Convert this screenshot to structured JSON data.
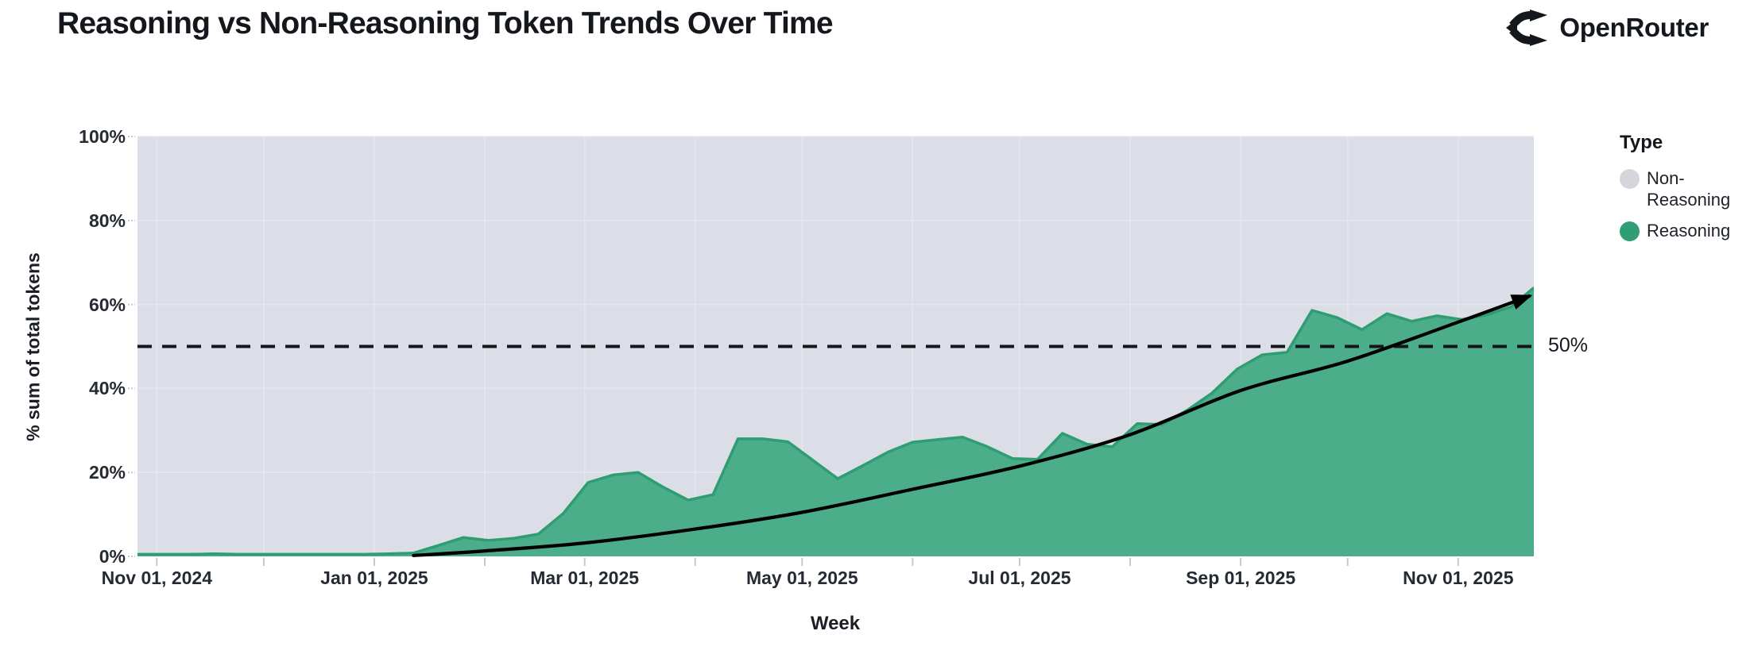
{
  "header": {
    "title": "Reasoning vs Non-Reasoning Token Trends Over Time",
    "brand": "OpenRouter"
  },
  "axes": {
    "y_title": "% sum of total tokens",
    "x_title": "Week"
  },
  "annotations": {
    "reference_label": "50%"
  },
  "legend": {
    "title": "Type",
    "items": [
      {
        "label": "Non-Reasoning",
        "color": "#d5d6dc"
      },
      {
        "label": "Reasoning",
        "color": "#2f9e74"
      }
    ]
  },
  "chart_data": {
    "type": "area",
    "stacked_to_100_percent": true,
    "title": "Reasoning vs Non-Reasoning Token Trends Over Time",
    "xlabel": "Week",
    "ylabel": "% sum of total tokens",
    "ylim": [
      0,
      100
    ],
    "grid": true,
    "legend_position": "right",
    "colors": {
      "plot_bg": "#dbdee6",
      "gridline": "#e4e7ee",
      "tick": "#c5c8cf",
      "area_fill": "#4bad8a",
      "area_stroke": "#2e9e72",
      "reference_line": "#15161d",
      "trend_line": "#000000"
    },
    "y_ticks": [
      {
        "label": "0%",
        "value": 0
      },
      {
        "label": "20%",
        "value": 20
      },
      {
        "label": "40%",
        "value": 40
      },
      {
        "label": "60%",
        "value": 60
      },
      {
        "label": "80%",
        "value": 80
      },
      {
        "label": "100%",
        "value": 100
      }
    ],
    "x_ticks": [
      {
        "label": "Nov 01, 2024",
        "date": "2024-11-01"
      },
      {
        "label": "Jan 01, 2025",
        "date": "2025-01-01"
      },
      {
        "label": "Mar 01, 2025",
        "date": "2025-03-01"
      },
      {
        "label": "May 01, 2025",
        "date": "2025-05-01"
      },
      {
        "label": "Jul 01, 2025",
        "date": "2025-07-01"
      },
      {
        "label": "Sep 01, 2025",
        "date": "2025-09-01"
      },
      {
        "label": "Nov 01, 2025",
        "date": "2025-11-01"
      }
    ],
    "minor_tick_dates": [
      "2024-11-01",
      "2024-12-01",
      "2025-01-01",
      "2025-02-01",
      "2025-03-01",
      "2025-04-01",
      "2025-05-01",
      "2025-06-01",
      "2025-07-01",
      "2025-08-01",
      "2025-09-01",
      "2025-10-01",
      "2025-11-01"
    ],
    "weeks": [
      "2024-10-27",
      "2024-11-03",
      "2024-11-10",
      "2024-11-17",
      "2024-11-24",
      "2024-12-01",
      "2024-12-08",
      "2024-12-15",
      "2024-12-22",
      "2024-12-29",
      "2025-01-05",
      "2025-01-12",
      "2025-01-19",
      "2025-01-26",
      "2025-02-02",
      "2025-02-09",
      "2025-02-16",
      "2025-02-23",
      "2025-03-02",
      "2025-03-09",
      "2025-03-16",
      "2025-03-23",
      "2025-03-30",
      "2025-04-06",
      "2025-04-13",
      "2025-04-20",
      "2025-04-27",
      "2025-05-04",
      "2025-05-11",
      "2025-05-18",
      "2025-05-25",
      "2025-06-01",
      "2025-06-08",
      "2025-06-15",
      "2025-06-22",
      "2025-06-29",
      "2025-07-06",
      "2025-07-13",
      "2025-07-20",
      "2025-07-27",
      "2025-08-03",
      "2025-08-10",
      "2025-08-17",
      "2025-08-24",
      "2025-08-31",
      "2025-09-07",
      "2025-09-14",
      "2025-09-21",
      "2025-09-28",
      "2025-10-05",
      "2025-10-12",
      "2025-10-19",
      "2025-10-26",
      "2025-11-02",
      "2025-11-09",
      "2025-11-16",
      "2025-11-23"
    ],
    "series": [
      {
        "name": "Reasoning",
        "unit": "% of total tokens",
        "values": [
          0.5,
          0.5,
          0.5,
          0.6,
          0.5,
          0.5,
          0.5,
          0.5,
          0.5,
          0.5,
          0.6,
          0.8,
          2.6,
          4.5,
          3.8,
          4.3,
          5.3,
          10.2,
          17.6,
          19.4,
          20.0,
          16.5,
          13.4,
          14.7,
          28.0,
          28.0,
          27.3,
          22.9,
          18.5,
          21.6,
          24.8,
          27.2,
          27.8,
          28.4,
          26.1,
          23.3,
          23.1,
          29.3,
          26.7,
          26.1,
          31.6,
          31.4,
          34.8,
          38.9,
          44.6,
          48.0,
          48.6,
          58.6,
          56.9,
          54.0,
          57.8,
          56.0,
          57.3,
          56.4,
          57.5,
          59.5,
          64.0
        ]
      },
      {
        "name": "Non-Reasoning",
        "unit": "% of total tokens",
        "derived": "100 minus Reasoning (stacked to 100%)",
        "values": [
          99.5,
          99.5,
          99.5,
          99.4,
          99.5,
          99.5,
          99.5,
          99.5,
          99.5,
          99.5,
          99.4,
          99.2,
          97.4,
          95.5,
          96.2,
          95.7,
          94.7,
          89.8,
          82.4,
          80.6,
          80.0,
          83.5,
          86.6,
          85.3,
          72.0,
          72.0,
          72.7,
          77.1,
          81.5,
          78.4,
          75.2,
          72.8,
          72.2,
          71.6,
          73.9,
          76.7,
          76.9,
          70.7,
          73.3,
          73.9,
          68.4,
          68.6,
          65.2,
          61.1,
          55.4,
          52.0,
          51.4,
          41.4,
          43.1,
          46.0,
          42.2,
          44.0,
          42.7,
          43.6,
          42.5,
          40.5,
          36.0
        ]
      }
    ],
    "reference_line": {
      "value": 50,
      "label": "50%",
      "style": "dashed"
    },
    "trend_arrow": {
      "description": "black exponential trend arrow over Reasoning share",
      "points": [
        [
          "2025-01-12",
          0.2
        ],
        [
          "2025-02-01",
          1.3
        ],
        [
          "2025-03-01",
          3.2
        ],
        [
          "2025-04-01",
          6.5
        ],
        [
          "2025-05-01",
          10.5
        ],
        [
          "2025-06-01",
          16.0
        ],
        [
          "2025-07-01",
          21.5
        ],
        [
          "2025-08-01",
          29.0
        ],
        [
          "2025-09-01",
          39.5
        ],
        [
          "2025-10-01",
          46.5
        ],
        [
          "2025-11-01",
          55.8
        ],
        [
          "2025-11-21",
          62.0
        ]
      ]
    }
  }
}
